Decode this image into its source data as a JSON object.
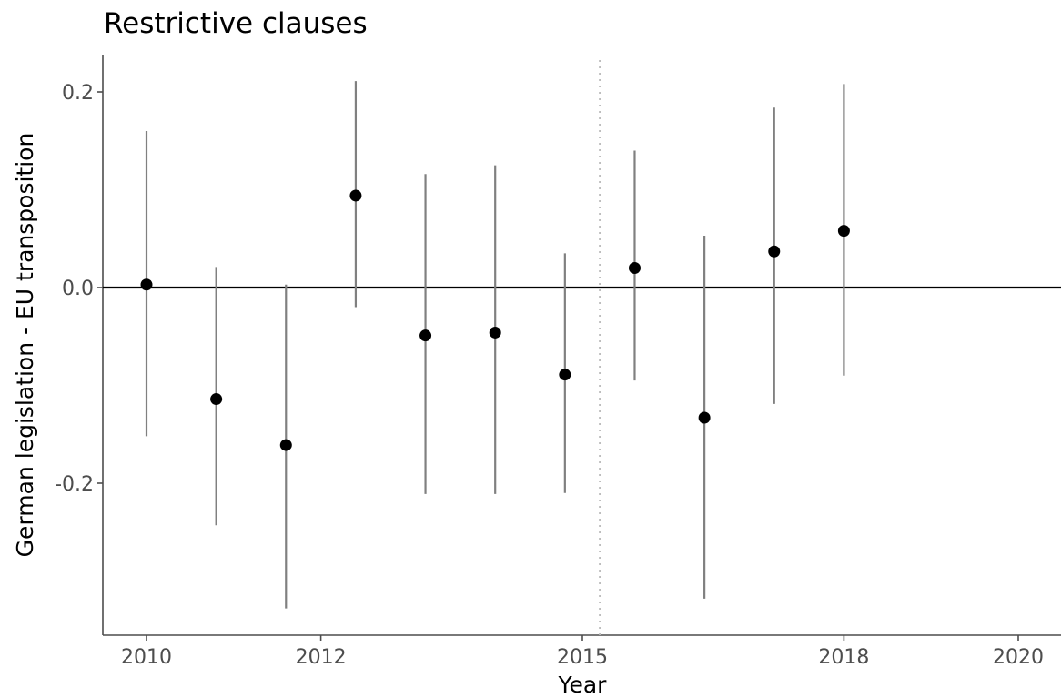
{
  "chart_data": {
    "type": "scatter",
    "title": "Restrictive clauses",
    "xlabel": "Year",
    "ylabel": "German legislation - EU transposition",
    "xlim": [
      2009.8,
      2020.2
    ],
    "ylim": [
      -0.355,
      0.237
    ],
    "x_ticks": [
      2010,
      2012,
      2015,
      2018,
      2020
    ],
    "x_tick_labels": [
      "2010",
      "2012",
      "2015",
      "2018",
      "2020"
    ],
    "y_ticks": [
      -0.2,
      0.0,
      0.2
    ],
    "y_tick_labels": [
      "-0.2",
      "0.0",
      "0.2"
    ],
    "reference_hline": 0.0,
    "reference_vline": 2015.2,
    "grid": false,
    "legend": "none",
    "colors": {
      "point": "#000000",
      "errorbar": "#808080",
      "hline": "#000000",
      "vline": "#bdbdbd",
      "axis": "#4d4d4d"
    },
    "points": [
      {
        "x": 2010.0,
        "y": 0.003,
        "lo": -0.152,
        "hi": 0.16
      },
      {
        "x": 2010.8,
        "y": -0.114,
        "lo": -0.243,
        "hi": 0.021
      },
      {
        "x": 2011.6,
        "y": -0.161,
        "lo": -0.328,
        "hi": 0.003
      },
      {
        "x": 2012.4,
        "y": 0.094,
        "lo": -0.02,
        "hi": 0.211
      },
      {
        "x": 2013.2,
        "y": -0.049,
        "lo": -0.211,
        "hi": 0.116
      },
      {
        "x": 2014.0,
        "y": -0.046,
        "lo": -0.211,
        "hi": 0.125
      },
      {
        "x": 2014.8,
        "y": -0.089,
        "lo": -0.21,
        "hi": 0.035
      },
      {
        "x": 2015.6,
        "y": 0.02,
        "lo": -0.095,
        "hi": 0.14
      },
      {
        "x": 2016.4,
        "y": -0.133,
        "lo": -0.318,
        "hi": 0.053
      },
      {
        "x": 2017.2,
        "y": 0.037,
        "lo": -0.119,
        "hi": 0.184
      },
      {
        "x": 2018.0,
        "y": 0.058,
        "lo": -0.09,
        "hi": 0.208
      }
    ]
  }
}
